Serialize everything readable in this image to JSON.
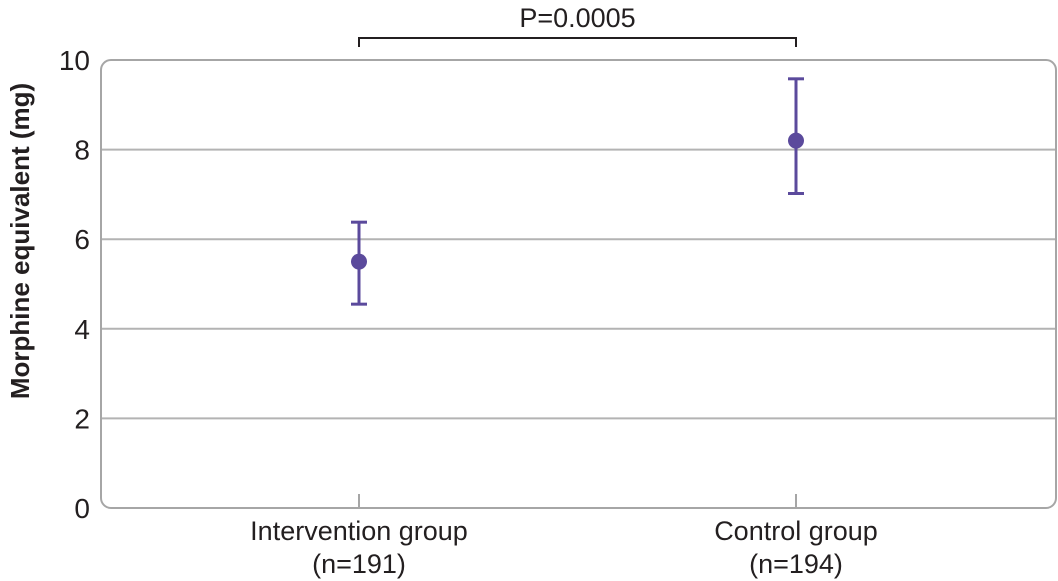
{
  "chart_data": {
    "type": "scatter",
    "title": "",
    "xlabel": "",
    "ylabel": "Morphine equivalent (mg)",
    "ylim": [
      0,
      10
    ],
    "yticks": [
      "0",
      "2",
      "4",
      "6",
      "8",
      "10"
    ],
    "grid": true,
    "categories": [
      {
        "name": "Intervention group",
        "n": "(n=191)"
      },
      {
        "name": "Control group",
        "n": "(n=194)"
      }
    ],
    "points": [
      {
        "y": 5.5,
        "lower": 4.55,
        "upper": 6.38
      },
      {
        "y": 8.2,
        "lower": 7.02,
        "upper": 9.58
      }
    ],
    "significance": {
      "label": "P=0.0005",
      "from": 0,
      "to": 1
    },
    "colors": {
      "marker": "#5b4a9c",
      "grid": "#b3b3b3",
      "axis": "#a6a6a6",
      "text": "#231f20"
    }
  }
}
